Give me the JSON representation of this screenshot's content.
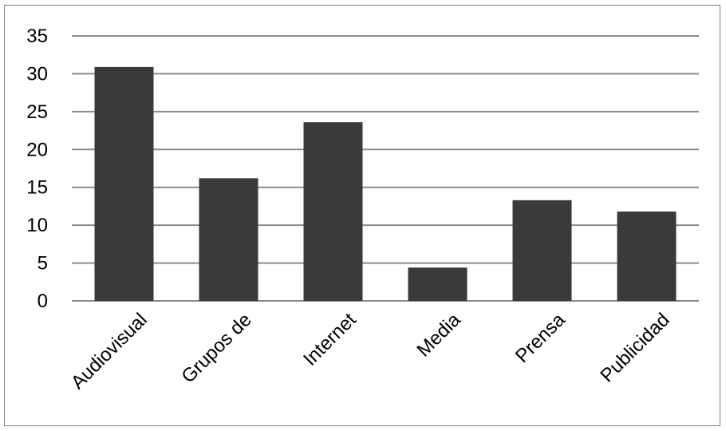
{
  "chart_data": {
    "type": "bar",
    "title": "",
    "xlabel": "",
    "ylabel": "",
    "categories": [
      "Audiovisual",
      "Grupos de",
      "Internet",
      "Media",
      "Prensa",
      "Publicidad"
    ],
    "values": [
      30.9,
      16.2,
      23.6,
      4.4,
      13.3,
      11.8
    ],
    "ylim": [
      0,
      35
    ],
    "yticks": [
      "0",
      "5",
      "10",
      "15",
      "20",
      "25",
      "30",
      "35"
    ],
    "grid": true,
    "legend": "none",
    "colors": {
      "bar": "#3a3a3a",
      "grid": "#8c8c8c",
      "frame": "#7f7f7f"
    }
  }
}
